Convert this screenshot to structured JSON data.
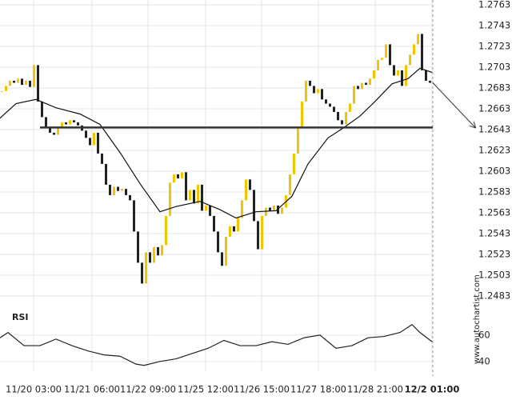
{
  "chart_data": {
    "type": "candlestick",
    "x_label_bold_last": true,
    "xlim": [
      0,
      108.2
    ],
    "xticks": [
      {
        "value": 8.4,
        "label": "11/20 03:00"
      },
      {
        "value": 23,
        "label": "11/21 06:00"
      },
      {
        "value": 37,
        "label": "11/22 09:00"
      },
      {
        "value": 51.4,
        "label": "11/25 12:00"
      },
      {
        "value": 65.4,
        "label": "11/26 15:00"
      },
      {
        "value": 79.6,
        "label": "11/27 18:00"
      },
      {
        "value": 93.8,
        "label": "11/28 21:00"
      },
      {
        "value": 108,
        "label": "12/2 01:00"
      }
    ],
    "ylim": [
      1.2481,
      1.2766
    ],
    "yticks": [
      1.2763,
      1.2743,
      1.2723,
      1.2703,
      1.2683,
      1.2663,
      1.2643,
      1.2623,
      1.2603,
      1.2583,
      1.2563,
      1.2543,
      1.2523,
      1.2503,
      1.2483
    ],
    "up_color": "#f2c500",
    "down_color": "#222222",
    "close": [
      1.268,
      1.2685,
      1.269,
      1.2688,
      1.2692,
      1.2686,
      1.269,
      1.2684,
      1.2705,
      1.267,
      1.2655,
      1.2645,
      1.264,
      1.2638,
      1.2645,
      1.265,
      1.2648,
      1.2652,
      1.265,
      1.2647,
      1.2642,
      1.2635,
      1.2628,
      1.264,
      1.262,
      1.261,
      1.259,
      1.258,
      1.2588,
      1.2584,
      1.2586,
      1.258,
      1.2575,
      1.2545,
      1.2515,
      1.2495,
      1.2525,
      1.2515,
      1.253,
      1.2522,
      1.2532,
      1.256,
      1.2592,
      1.26,
      1.2596,
      1.2602,
      1.2575,
      1.2585,
      1.2572,
      1.259,
      1.2565,
      1.257,
      1.256,
      1.2545,
      1.2525,
      1.2512,
      1.254,
      1.255,
      1.2545,
      1.2558,
      1.2575,
      1.2595,
      1.2585,
      1.2555,
      1.2528,
      1.256,
      1.2568,
      1.2565,
      1.257,
      1.2562,
      1.2568,
      1.258,
      1.26,
      1.262,
      1.2645,
      1.267,
      1.269,
      1.2685,
      1.2678,
      1.2682,
      1.2672,
      1.2668,
      1.2665,
      1.266,
      1.2652,
      1.2648,
      1.266,
      1.2668,
      1.2685,
      1.2682,
      1.2688,
      1.2686,
      1.2692,
      1.27,
      1.271,
      1.2712,
      1.2725,
      1.2705,
      1.2695,
      1.27,
      1.2685,
      1.2705,
      1.2715,
      1.2725,
      1.2735,
      1.27,
      1.269,
      1.2688
    ],
    "moving_average": {
      "color": "#111111",
      "x": [
        0,
        4,
        9,
        14,
        20,
        25,
        30,
        35,
        40,
        44,
        50,
        55,
        59,
        64,
        69,
        73,
        77,
        82,
        86,
        90,
        94,
        98,
        102,
        105,
        108
      ],
      "values": [
        1.2654,
        1.2668,
        1.2672,
        1.2664,
        1.2658,
        1.2648,
        1.2621,
        1.2591,
        1.2564,
        1.2569,
        1.2574,
        1.2566,
        1.2558,
        1.2564,
        1.2565,
        1.2579,
        1.261,
        1.2635,
        1.2645,
        1.2656,
        1.2671,
        1.2687,
        1.2692,
        1.2702,
        1.2698
      ]
    },
    "support_level": 1.2645,
    "rsi": {
      "label": "RSI",
      "ylim": [
        32,
        80.6
      ],
      "yticks": [
        60,
        40
      ],
      "color": "#222222",
      "x": [
        0,
        2,
        6,
        10,
        14,
        18,
        22,
        26,
        30,
        34,
        36,
        40,
        44,
        48,
        52,
        56,
        60,
        64,
        68,
        72,
        76,
        80,
        84,
        88,
        92,
        96,
        100,
        103,
        105,
        108
      ],
      "values": [
        58,
        62,
        52,
        52,
        57,
        52,
        48,
        45,
        44,
        38,
        37,
        40,
        42,
        46,
        50,
        56,
        52,
        52,
        55,
        53,
        58,
        60,
        50,
        52,
        58,
        59,
        62,
        68,
        62,
        55
      ]
    },
    "watermark": "www.autochartist.com"
  }
}
